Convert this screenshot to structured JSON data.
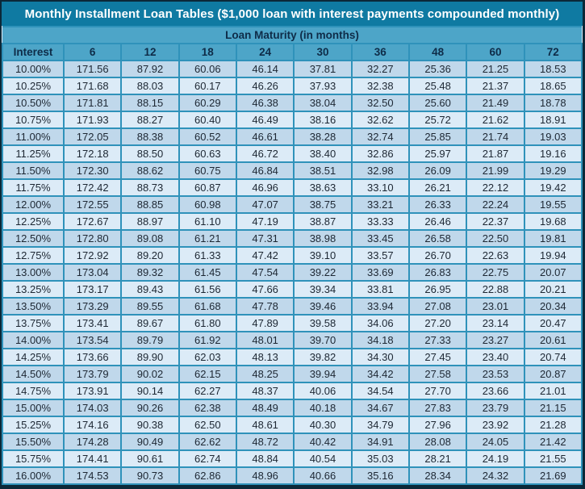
{
  "title": "Monthly Installment Loan Tables ($1,000 loan with interest payments compounded monthly)",
  "table": {
    "band_header": "Loan Maturity (in months)",
    "columns": [
      "Interest",
      "6",
      "12",
      "18",
      "24",
      "30",
      "36",
      "48",
      "60",
      "72"
    ],
    "rows": [
      [
        "10.00%",
        "171.56",
        "87.92",
        "60.06",
        "46.14",
        "37.81",
        "32.27",
        "25.36",
        "21.25",
        "18.53"
      ],
      [
        "10.25%",
        "171.68",
        "88.03",
        "60.17",
        "46.26",
        "37.93",
        "32.38",
        "25.48",
        "21.37",
        "18.65"
      ],
      [
        "10.50%",
        "171.81",
        "88.15",
        "60.29",
        "46.38",
        "38.04",
        "32.50",
        "25.60",
        "21.49",
        "18.78"
      ],
      [
        "10.75%",
        "171.93",
        "88.27",
        "60.40",
        "46.49",
        "38.16",
        "32.62",
        "25.72",
        "21.62",
        "18.91"
      ],
      [
        "11.00%",
        "172.05",
        "88.38",
        "60.52",
        "46.61",
        "38.28",
        "32.74",
        "25.85",
        "21.74",
        "19.03"
      ],
      [
        "11.25%",
        "172.18",
        "88.50",
        "60.63",
        "46.72",
        "38.40",
        "32.86",
        "25.97",
        "21.87",
        "19.16"
      ],
      [
        "11.50%",
        "172.30",
        "88.62",
        "60.75",
        "46.84",
        "38.51",
        "32.98",
        "26.09",
        "21.99",
        "19.29"
      ],
      [
        "11.75%",
        "172.42",
        "88.73",
        "60.87",
        "46.96",
        "38.63",
        "33.10",
        "26.21",
        "22.12",
        "19.42"
      ],
      [
        "12.00%",
        "172.55",
        "88.85",
        "60.98",
        "47.07",
        "38.75",
        "33.21",
        "26.33",
        "22.24",
        "19.55"
      ],
      [
        "12.25%",
        "172.67",
        "88.97",
        "61.10",
        "47.19",
        "38.87",
        "33.33",
        "26.46",
        "22.37",
        "19.68"
      ],
      [
        "12.50%",
        "172.80",
        "89.08",
        "61.21",
        "47.31",
        "38.98",
        "33.45",
        "26.58",
        "22.50",
        "19.81"
      ],
      [
        "12.75%",
        "172.92",
        "89.20",
        "61.33",
        "47.42",
        "39.10",
        "33.57",
        "26.70",
        "22.63",
        "19.94"
      ],
      [
        "13.00%",
        "173.04",
        "89.32",
        "61.45",
        "47.54",
        "39.22",
        "33.69",
        "26.83",
        "22.75",
        "20.07"
      ],
      [
        "13.25%",
        "173.17",
        "89.43",
        "61.56",
        "47.66",
        "39.34",
        "33.81",
        "26.95",
        "22.88",
        "20.21"
      ],
      [
        "13.50%",
        "173.29",
        "89.55",
        "61.68",
        "47.78",
        "39.46",
        "33.94",
        "27.08",
        "23.01",
        "20.34"
      ],
      [
        "13.75%",
        "173.41",
        "89.67",
        "61.80",
        "47.89",
        "39.58",
        "34.06",
        "27.20",
        "23.14",
        "20.47"
      ],
      [
        "14.00%",
        "173.54",
        "89.79",
        "61.92",
        "48.01",
        "39.70",
        "34.18",
        "27.33",
        "23.27",
        "20.61"
      ],
      [
        "14.25%",
        "173.66",
        "89.90",
        "62.03",
        "48.13",
        "39.82",
        "34.30",
        "27.45",
        "23.40",
        "20.74"
      ],
      [
        "14.50%",
        "173.79",
        "90.02",
        "62.15",
        "48.25",
        "39.94",
        "34.42",
        "27.58",
        "23.53",
        "20.87"
      ],
      [
        "14.75%",
        "173.91",
        "90.14",
        "62.27",
        "48.37",
        "40.06",
        "34.54",
        "27.70",
        "23.66",
        "21.01"
      ],
      [
        "15.00%",
        "174.03",
        "90.26",
        "62.38",
        "48.49",
        "40.18",
        "34.67",
        "27.83",
        "23.79",
        "21.15"
      ],
      [
        "15.25%",
        "174.16",
        "90.38",
        "62.50",
        "48.61",
        "40.30",
        "34.79",
        "27.96",
        "23.92",
        "21.28"
      ],
      [
        "15.50%",
        "174.28",
        "90.49",
        "62.62",
        "48.72",
        "40.42",
        "34.91",
        "28.08",
        "24.05",
        "21.42"
      ],
      [
        "15.75%",
        "174.41",
        "90.61",
        "62.74",
        "48.84",
        "40.54",
        "35.03",
        "28.21",
        "24.19",
        "21.55"
      ],
      [
        "16.00%",
        "174.53",
        "90.73",
        "62.86",
        "48.96",
        "40.66",
        "35.16",
        "28.34",
        "24.32",
        "21.69"
      ]
    ]
  },
  "colors": {
    "frame": "#0b2838",
    "title_bg": "#0f7aa2",
    "title_text": "#ffffff",
    "band_bg": "#4da5c8",
    "header_text": "#0e2c48",
    "grid": "#2f92ba",
    "row_light": "#dcebf7",
    "row_dark": "#c0d8eb",
    "cell_text": "#1d2733"
  }
}
